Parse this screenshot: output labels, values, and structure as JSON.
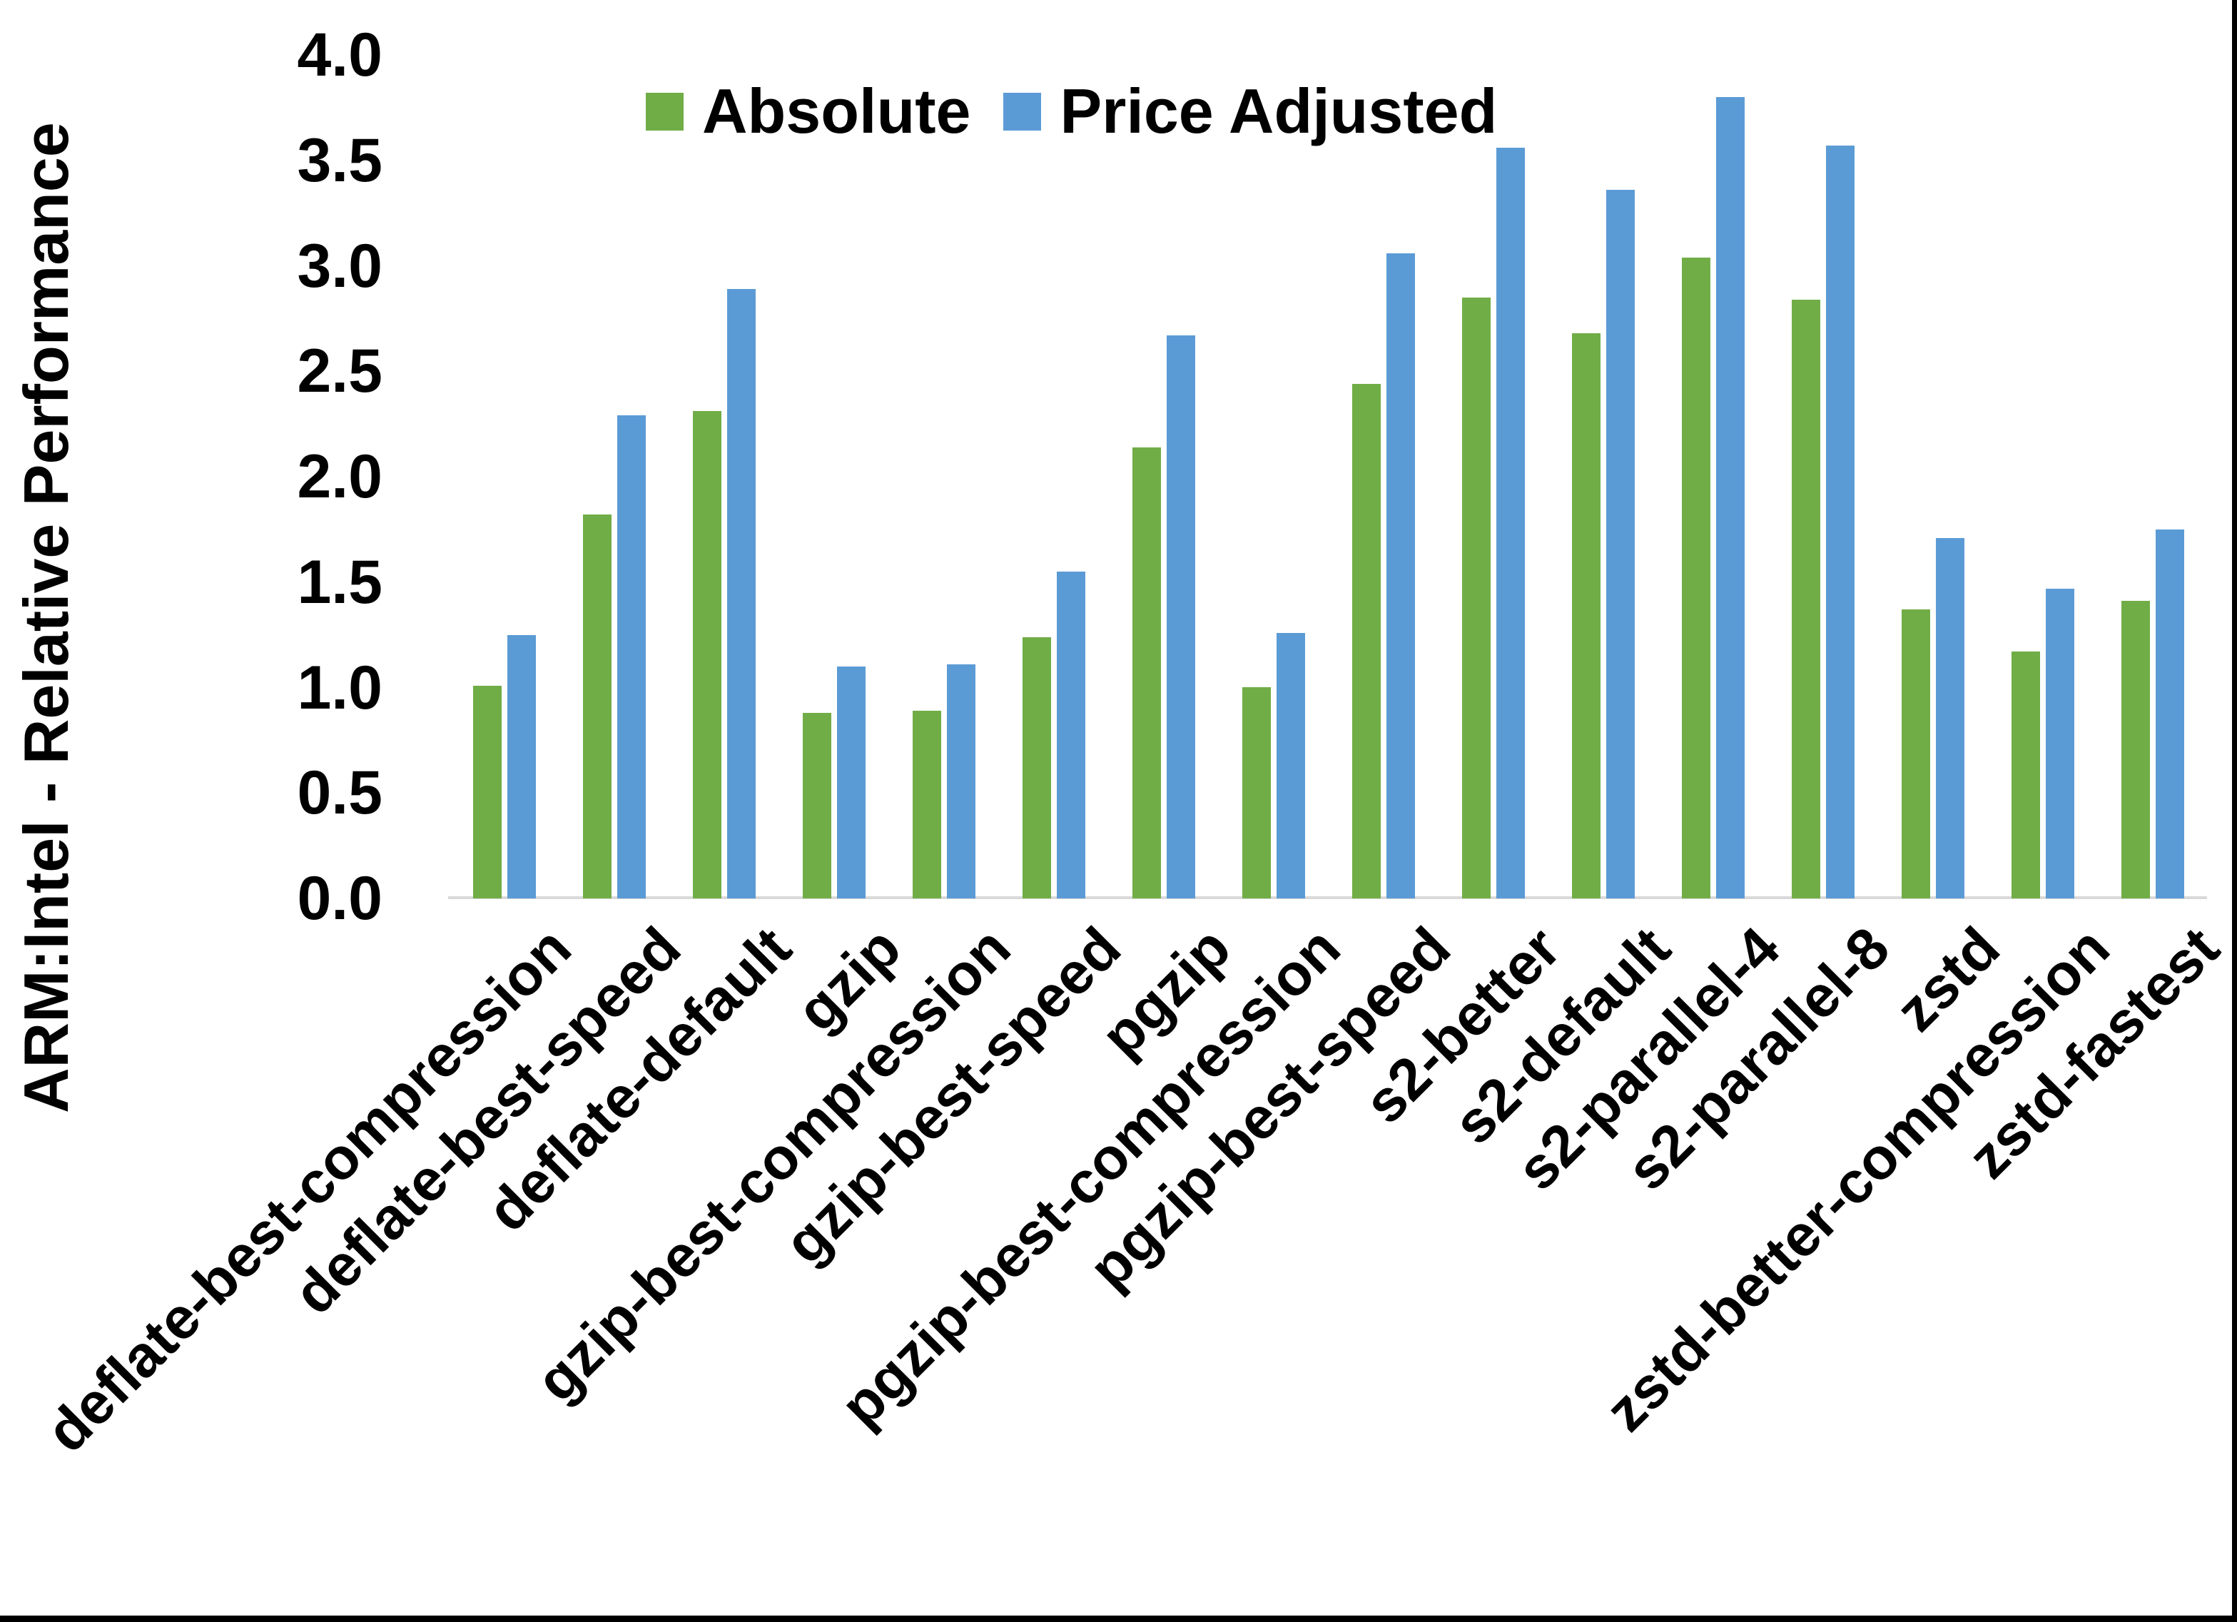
{
  "chart_data": {
    "type": "bar",
    "title": "",
    "xlabel": "",
    "ylabel": "ARM:Intel - Relative Performance",
    "ylim": [
      0.0,
      4.0
    ],
    "ytick_step": 0.5,
    "yticks": [
      "4.0",
      "3.5",
      "3.0",
      "2.5",
      "2.0",
      "1.5",
      "1.0",
      "0.5",
      "0.0"
    ],
    "grid": "off",
    "legend_position": "top-center-inside",
    "categories": [
      "deflate-best-compression",
      "deflate-best-speed",
      "deflate-default",
      "gzip",
      "gzip-best-compression",
      "gzip-best-speed",
      "pgzip",
      "pgzip-best-compression",
      "pgzip-best-speed",
      "s2-better",
      "s2-default",
      "s2-parallel-4",
      "s2-parallel-8",
      "zstd",
      "zstd-better-compression",
      "zstd-fastest"
    ],
    "series": [
      {
        "name": "Absolute",
        "color": "#70AD47",
        "values": [
          1.01,
          1.82,
          2.31,
          0.88,
          0.89,
          1.24,
          2.14,
          1.0,
          2.44,
          2.85,
          2.68,
          3.04,
          2.84,
          1.37,
          1.17,
          1.41
        ]
      },
      {
        "name": "Price Adjusted",
        "color": "#5B9BD5",
        "values": [
          1.25,
          2.29,
          2.89,
          1.1,
          1.11,
          1.55,
          2.67,
          1.26,
          3.06,
          3.56,
          3.36,
          3.8,
          3.57,
          1.71,
          1.47,
          1.75
        ]
      }
    ]
  },
  "colors": {
    "background": "#FFFFFF",
    "axis_line": "#D9D9D9",
    "text": "#000000",
    "frame": "#000000"
  }
}
